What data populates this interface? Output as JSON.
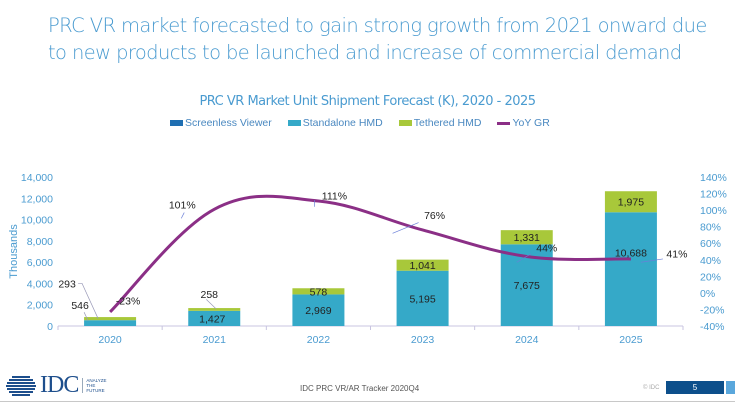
{
  "headline": "PRC VR market forecasted to gain strong growth from 2021 onward due to new products to be launched and increase of commercial demand",
  "footer": {
    "logo_text": "IDC",
    "tagline": [
      "ANALYZE",
      "THE",
      "FUTURE"
    ],
    "source": "IDC PRC VR/AR Tracker 2020Q4",
    "copyright": "© IDC",
    "page_number": "5"
  },
  "colors": {
    "screenless": "#1f6fb2",
    "standalone": "#35a9c8",
    "tethered": "#a8c83a",
    "yoy": "#8b2f86",
    "axis_text": "#4a9bd0"
  },
  "chart_data": {
    "type": "bar",
    "stacked": true,
    "title": "PRC VR Market Unit Shipment Forecast (K), 2020 - 2025",
    "categories": [
      "2020",
      "2021",
      "2022",
      "2023",
      "2024",
      "2025"
    ],
    "series": [
      {
        "name": "Screenless Viewer",
        "type": "bar",
        "values": [
          0,
          0,
          0,
          0,
          0,
          0
        ]
      },
      {
        "name": "Standalone HMD",
        "type": "bar",
        "values": [
          546,
          1427,
          2969,
          5195,
          7675,
          10688
        ]
      },
      {
        "name": "Tethered HMD",
        "type": "bar",
        "values": [
          293,
          258,
          578,
          1041,
          1331,
          1975
        ]
      },
      {
        "name": "YoY GR",
        "type": "line",
        "axis": "right",
        "values": [
          -23,
          101,
          111,
          76,
          44,
          41
        ],
        "labels": [
          "-23%",
          "101%",
          "111%",
          "76%",
          "44%",
          "41%"
        ]
      }
    ],
    "data_labels": {
      "standalone": [
        "546",
        "1,427",
        "2,969",
        "5,195",
        "7,675",
        "10,688"
      ],
      "tethered": [
        "293",
        "258",
        "578",
        "1,041",
        "1,331",
        "1,975"
      ]
    },
    "ylabel": "Thousands",
    "ylim": [
      0,
      14000
    ],
    "yticks": [
      "0",
      "2,000",
      "4,000",
      "6,000",
      "8,000",
      "10,000",
      "12,000",
      "14,000"
    ],
    "y2lim": [
      -40,
      140
    ],
    "y2ticks": [
      "-40%",
      "-20%",
      "0%",
      "20%",
      "40%",
      "60%",
      "80%",
      "100%",
      "120%",
      "140%"
    ],
    "legend": [
      "Screenless Viewer",
      "Standalone HMD",
      "Tethered HMD",
      "YoY GR"
    ],
    "legend_position": "top",
    "grid": false
  }
}
